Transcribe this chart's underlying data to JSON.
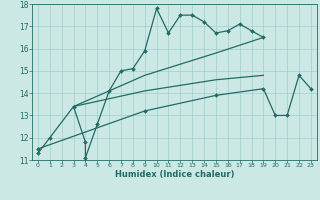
{
  "xlabel": "Humidex (Indice chaleur)",
  "bg_color": "#cce8e4",
  "grid_color": "#9ecfca",
  "line_color": "#226b65",
  "xlim": [
    -0.5,
    23.5
  ],
  "ylim": [
    11,
    18
  ],
  "yticks": [
    11,
    12,
    13,
    14,
    15,
    16,
    17,
    18
  ],
  "xticks": [
    0,
    1,
    2,
    3,
    4,
    5,
    6,
    7,
    8,
    9,
    10,
    11,
    12,
    13,
    14,
    15,
    16,
    17,
    18,
    19,
    20,
    21,
    22,
    23
  ],
  "series1_x": [
    0,
    1,
    3,
    4,
    4,
    5,
    6,
    7,
    8,
    9,
    10,
    11,
    12,
    13,
    14,
    15,
    16,
    17,
    18,
    19
  ],
  "series1_y": [
    11.3,
    12.0,
    13.4,
    11.8,
    11.1,
    12.6,
    14.1,
    15.0,
    15.1,
    15.9,
    17.8,
    16.7,
    17.5,
    17.5,
    17.2,
    16.7,
    16.8,
    17.1,
    16.8,
    16.5
  ],
  "series2_x": [
    3,
    9,
    15,
    19
  ],
  "series2_y": [
    13.4,
    14.8,
    15.8,
    16.5
  ],
  "series3_x": [
    3,
    9,
    15,
    19
  ],
  "series3_y": [
    13.4,
    14.1,
    14.6,
    14.8
  ],
  "series4_x": [
    0,
    9,
    15,
    19,
    20,
    21,
    22,
    23
  ],
  "series4_y": [
    11.5,
    13.2,
    13.9,
    14.2,
    13.0,
    13.0,
    14.8,
    14.2
  ]
}
